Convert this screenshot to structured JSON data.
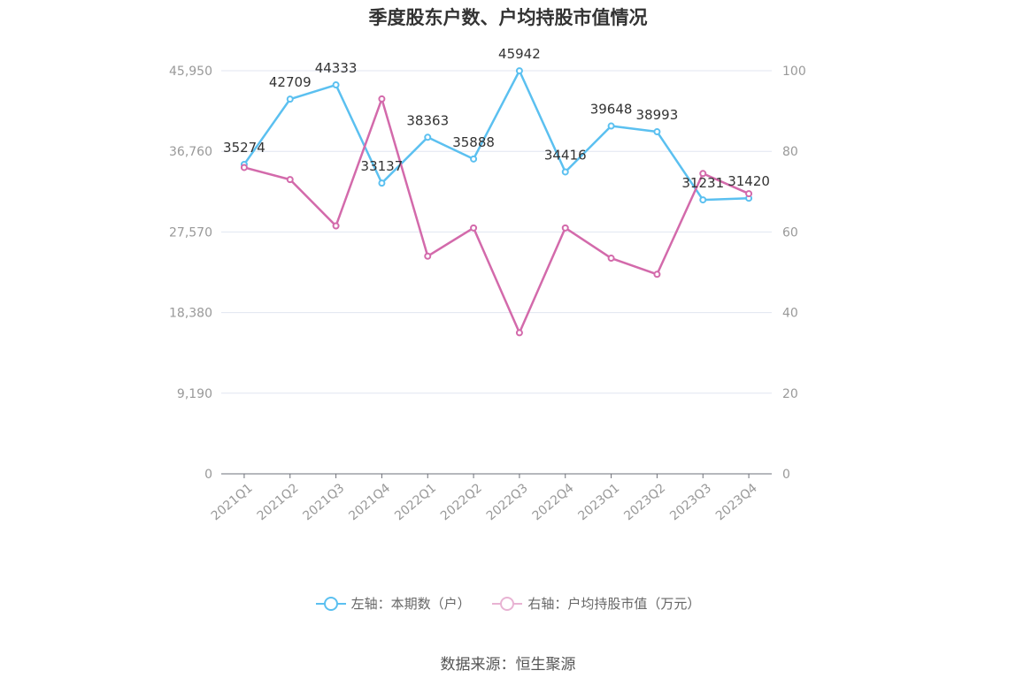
{
  "chart_data": {
    "type": "line",
    "title": "季度股东户数、户均持股市值情况",
    "categories": [
      "2021Q1",
      "2021Q2",
      "2021Q3",
      "2021Q4",
      "2022Q1",
      "2022Q2",
      "2022Q3",
      "2022Q4",
      "2023Q1",
      "2023Q2",
      "2023Q3",
      "2023Q4"
    ],
    "left_axis": {
      "ticks": [
        "0",
        "9,190",
        "18,380",
        "27,570",
        "36,760",
        "45,950"
      ],
      "ylim": [
        0,
        45950
      ]
    },
    "right_axis": {
      "ticks": [
        "0",
        "20",
        "40",
        "60",
        "80",
        "100"
      ],
      "ylim": [
        0,
        100
      ]
    },
    "series": [
      {
        "name": "左轴：本期数（户）",
        "axis": "left",
        "color": "#5bc0f0",
        "values": [
          35274,
          42709,
          44333,
          33137,
          38363,
          35888,
          45942,
          34416,
          39648,
          38993,
          31231,
          31420
        ],
        "labels": [
          "35274",
          "42709",
          "44333",
          "33137",
          "38363",
          "35888",
          "45942",
          "34416",
          "39648",
          "38993",
          "31231",
          "31420"
        ]
      },
      {
        "name": "右轴：户均持股市值（万元）",
        "axis": "right",
        "color": "#d36aab",
        "values": [
          76.0,
          73.0,
          61.5,
          93.0,
          54.0,
          61.0,
          35.0,
          61.0,
          53.5,
          49.5,
          74.5,
          69.5
        ]
      }
    ],
    "grid": true,
    "legend_position": "bottom"
  },
  "source_text": "数据来源：恒生聚源"
}
